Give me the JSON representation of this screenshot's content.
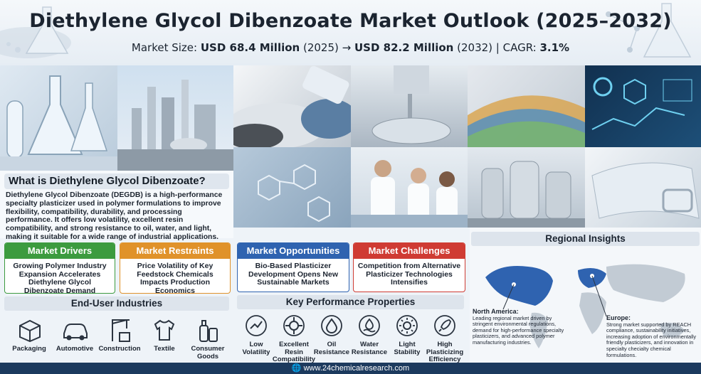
{
  "header": {
    "title": "Diethylene Glycol Dibenzoate Market Outlook (2025–2032)",
    "subtitle": {
      "prefix": "Market Size: ",
      "size_2025": "USD 68.4 Million",
      "year_2025": " (2025) → ",
      "size_2032": "USD 82.2 Million",
      "year_2032": " (2032) | CAGR: ",
      "cagr": "3.1%"
    }
  },
  "what_is": {
    "title": "What is Diethylene Glycol Dibenzoate?",
    "body": "Diethylene Glycol Dibenzoate (DEGDB) is a high-performance specialty plasticizer used in polymer formulations to improve flexibility, compatibility, durability, and processing performance. It offers low volatility, excellent resin compatibility, and strong resistance to oil, water, and light, making it suitable for a wide range of industrial applications."
  },
  "cards": {
    "drivers": {
      "title": "Market Drivers",
      "body": "Growing Polymer Industry Expansion Accelerates Diethylene Glycol Dibenzoate Demand",
      "color": "#3c9b3f"
    },
    "restraints": {
      "title": "Market Restraints",
      "body": "Price Volatility of Key Feedstock Chemicals Impacts Production Economics",
      "color": "#e0922a"
    },
    "opportunities": {
      "title": "Market Opportunities",
      "body": "Bio-Based Plasticizer Development Opens New Sustainable Markets",
      "color": "#2f63b0"
    },
    "challenges": {
      "title": "Market Challenges",
      "body": "Competition from Alternative Plasticizer Technologies Intensifies",
      "color": "#cf3b33"
    }
  },
  "end_user": {
    "title": "End-User Industries",
    "items": [
      {
        "label": "Packaging",
        "icon": "box-icon"
      },
      {
        "label": "Automotive",
        "icon": "car-icon"
      },
      {
        "label": "Construction",
        "icon": "crane-icon"
      },
      {
        "label": "Textile",
        "icon": "shirt-icon"
      },
      {
        "label": "Consumer Goods",
        "icon": "bottles-icon"
      }
    ]
  },
  "properties": {
    "title": "Key Performance Properties",
    "items": [
      {
        "label": "Low Volatility",
        "icon": "volatility-icon"
      },
      {
        "label": "Excellent Resin Compatibility",
        "icon": "compatibility-icon"
      },
      {
        "label": "Oil Resistance",
        "icon": "oil-drop-icon"
      },
      {
        "label": "Water Resistance",
        "icon": "water-icon"
      },
      {
        "label": "Light Stability",
        "icon": "sun-icon"
      },
      {
        "label": "High Plasticizing Efficiency",
        "icon": "rocket-icon"
      }
    ]
  },
  "regional": {
    "title": "Regional Insights",
    "north_america": {
      "name": "North America:",
      "text": "Leading regional market driven by stringent environmental regulations, demand for high-performance specialty plasticizers, and advanced polymer manufacturing industries."
    },
    "europe": {
      "name": "Europe:",
      "text": "Strong market supported by REACH compliance, sustainability initiatives, increasing adoption of environmentally friendly plasticizers, and innovation in specialty checialty chemical formulations."
    }
  },
  "footer": {
    "url": "www.24chemicalresearch.com",
    "icon": "globe-icon"
  }
}
